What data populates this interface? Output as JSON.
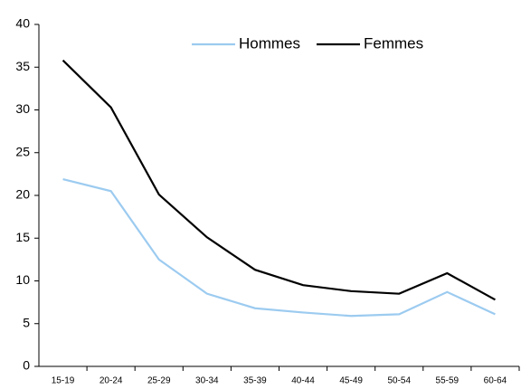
{
  "chart_data": {
    "type": "line",
    "categories": [
      "15-19",
      "20-24",
      "25-29",
      "30-34",
      "35-39",
      "40-44",
      "45-49",
      "50-54",
      "55-59",
      "60-64"
    ],
    "series": [
      {
        "name": "Hommes",
        "color": "#9ccbf0",
        "values": [
          21.9,
          20.5,
          12.5,
          8.5,
          6.8,
          6.3,
          5.9,
          6.1,
          8.7,
          6.1
        ]
      },
      {
        "name": "Femmes",
        "color": "#000000",
        "values": [
          35.8,
          30.3,
          20.1,
          15.1,
          11.3,
          9.5,
          8.8,
          8.5,
          10.9,
          7.8
        ]
      }
    ],
    "ylim": [
      0,
      40
    ],
    "yticks": [
      0,
      5,
      10,
      15,
      20,
      25,
      30,
      35,
      40
    ],
    "grid": false,
    "legend": "top"
  }
}
